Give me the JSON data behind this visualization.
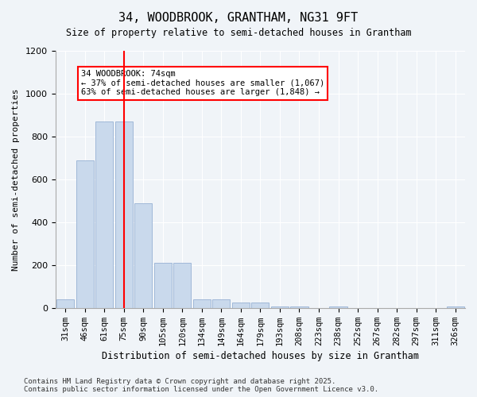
{
  "title1": "34, WOODBROOK, GRANTHAM, NG31 9FT",
  "title2": "Size of property relative to semi-detached houses in Grantham",
  "xlabel": "Distribution of semi-detached houses by size in Grantham",
  "ylabel": "Number of semi-detached properties",
  "categories": [
    "31sqm",
    "46sqm",
    "61sqm",
    "75sqm",
    "90sqm",
    "105sqm",
    "120sqm",
    "134sqm",
    "149sqm",
    "164sqm",
    "179sqm",
    "193sqm",
    "208sqm",
    "223sqm",
    "238sqm",
    "252sqm",
    "267sqm",
    "282sqm",
    "297sqm",
    "311sqm",
    "326sqm"
  ],
  "values": [
    40,
    690,
    870,
    870,
    490,
    210,
    210,
    40,
    40,
    25,
    25,
    5,
    5,
    0,
    5,
    0,
    0,
    0,
    0,
    0,
    5
  ],
  "bar_color": "#c9d9ec",
  "bar_edge_color": "#a0b8d8",
  "highlight_index": 3,
  "red_line_x": 3,
  "annotation_title": "34 WOODBROOK: 74sqm",
  "annotation_line1": "← 37% of semi-detached houses are smaller (1,067)",
  "annotation_line2": "63% of semi-detached houses are larger (1,848) →",
  "ylim": [
    0,
    1200
  ],
  "yticks": [
    0,
    200,
    400,
    600,
    800,
    1000,
    1200
  ],
  "footnote1": "Contains HM Land Registry data © Crown copyright and database right 2025.",
  "footnote2": "Contains public sector information licensed under the Open Government Licence v3.0.",
  "bg_color": "#f0f4f8",
  "plot_bg_color": "#f0f4f8"
}
